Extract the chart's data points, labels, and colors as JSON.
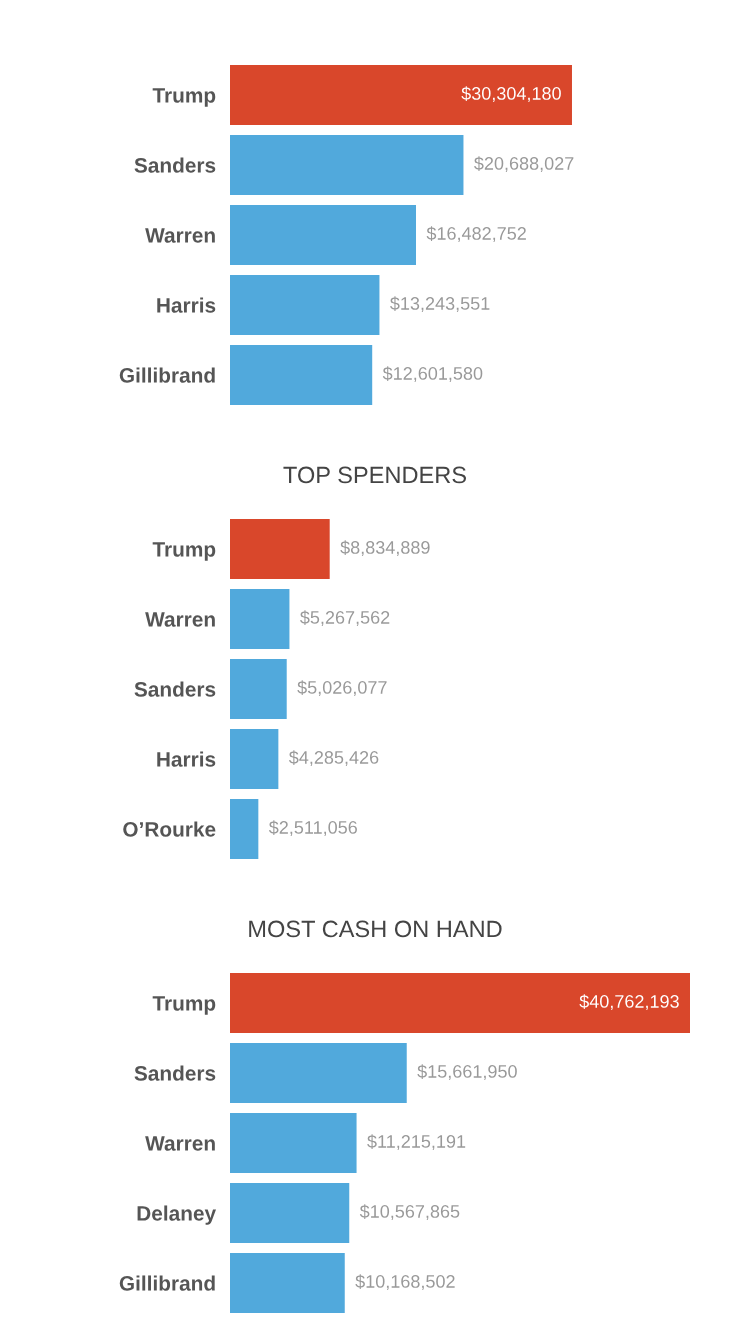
{
  "chart_data": [
    {
      "type": "bar",
      "orientation": "horizontal",
      "categories": [
        "Trump",
        "Sanders",
        "Warren",
        "Harris",
        "Gillibrand"
      ],
      "values": [
        30304180,
        20688027,
        16482752,
        13243551,
        12601580
      ],
      "colors": [
        "#d9472b",
        "#51a9dc",
        "#51a9dc",
        "#51a9dc",
        "#51a9dc"
      ],
      "value_labels": [
        "$30,304,180",
        "$20,688,027",
        "$16,482,752",
        "$13,243,551",
        "$12,601,580"
      ]
    },
    {
      "type": "bar",
      "orientation": "horizontal",
      "title": "TOP SPENDERS",
      "categories": [
        "Trump",
        "Warren",
        "Sanders",
        "Harris",
        "O’Rourke"
      ],
      "values": [
        8834889,
        5267562,
        5026077,
        4285426,
        2511056
      ],
      "colors": [
        "#d9472b",
        "#51a9dc",
        "#51a9dc",
        "#51a9dc",
        "#51a9dc"
      ],
      "value_labels": [
        "$8,834,889",
        "$5,267,562",
        "$5,026,077",
        "$4,285,426",
        "$2,511,056"
      ]
    },
    {
      "type": "bar",
      "orientation": "horizontal",
      "title": "MOST CASH ON HAND",
      "categories": [
        "Trump",
        "Sanders",
        "Warren",
        "Delaney",
        "Gillibrand"
      ],
      "values": [
        40762193,
        15661950,
        11215191,
        10567865,
        10168502
      ],
      "colors": [
        "#d9472b",
        "#51a9dc",
        "#51a9dc",
        "#51a9dc",
        "#51a9dc"
      ],
      "value_labels": [
        "$40,762,193",
        "$15,661,950",
        "$11,215,191",
        "$10,567,865",
        "$10,168,502"
      ]
    }
  ]
}
